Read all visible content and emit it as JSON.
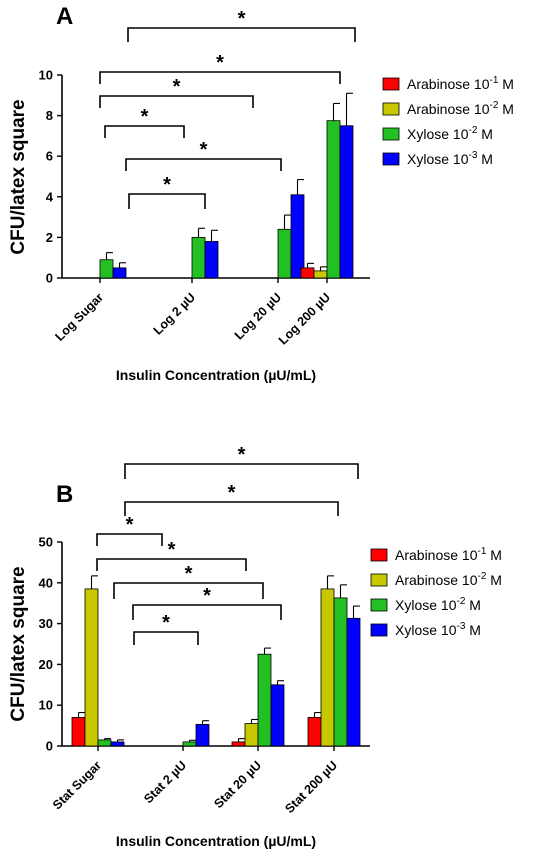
{
  "chart_data": [
    {
      "type": "bar",
      "panel": "A",
      "xlabel": "Insulin Concentration (µU/mL)",
      "ylabel": "CFU/latex square",
      "ylim": [
        0,
        10
      ],
      "yticks": [
        0,
        2,
        4,
        6,
        8,
        10
      ],
      "categories": [
        "Log Sugar",
        "Log 2 µU",
        "Log 20 µU",
        "Log 200 µU"
      ],
      "series": [
        {
          "name": "Arabinose 10^-1 M",
          "base": "Arabinose 10",
          "exp": "-1",
          "unit": " M",
          "color": "#ff0000",
          "values": [
            0,
            0,
            0,
            0.5
          ],
          "errors": [
            0,
            0,
            0,
            0.22
          ]
        },
        {
          "name": "Arabinose 10^-2 M",
          "base": "Arabinose 10",
          "exp": "-2",
          "unit": " M",
          "color": "#c8c800",
          "values": [
            0,
            0,
            0,
            0.35
          ],
          "errors": [
            0,
            0,
            0,
            0.2
          ]
        },
        {
          "name": "Xylose 10^-2 M",
          "base": "Xylose 10",
          "exp": "-2",
          "unit": " M",
          "color": "#22c022",
          "values": [
            0.9,
            2.0,
            2.4,
            7.75
          ],
          "errors": [
            0.35,
            0.45,
            0.7,
            0.85
          ]
        },
        {
          "name": "Xylose 10^-3 M",
          "base": "Xylose 10",
          "exp": "-3",
          "unit": " M",
          "color": "#0000ff",
          "values": [
            0.5,
            1.8,
            4.1,
            7.5
          ],
          "errors": [
            0.25,
            0.55,
            0.75,
            1.6
          ]
        }
      ],
      "significance": [
        {
          "from": "Log Sugar",
          "to": "Log 200 µU",
          "label": "*"
        },
        {
          "from": "Log Sugar",
          "to": "Log 200 µU",
          "label": "*"
        },
        {
          "from": "Log Sugar",
          "to": "Log 20 µU",
          "label": "*"
        },
        {
          "from": "Log Sugar",
          "to": "Log 2 µU",
          "label": "*"
        },
        {
          "from": "Log Sugar",
          "to": "Log 20 µU",
          "label": "*"
        },
        {
          "from": "Log Sugar",
          "to": "Log 2 µU",
          "label": "*"
        }
      ]
    },
    {
      "type": "bar",
      "panel": "B",
      "xlabel": "Insulin Concentration (µU/mL)",
      "ylabel": "CFU/latex square",
      "ylim": [
        0,
        50
      ],
      "yticks": [
        0,
        10,
        20,
        30,
        40,
        50
      ],
      "categories": [
        "Stat Sugar",
        "Stat 2 µU",
        "Stat 20 µU",
        "Stat 200 µU"
      ],
      "series": [
        {
          "name": "Arabinose 10^-1 M",
          "base": "Arabinose 10",
          "exp": "-1",
          "unit": " M",
          "color": "#ff0000",
          "values": [
            7.0,
            0,
            1.0,
            7.0
          ],
          "errors": [
            1.2,
            0,
            0.8,
            1.2
          ]
        },
        {
          "name": "Arabinose 10^-2 M",
          "base": "Arabinose 10",
          "exp": "-2",
          "unit": " M",
          "color": "#c8c800",
          "values": [
            38.5,
            0,
            5.5,
            38.5
          ],
          "errors": [
            3.2,
            0,
            1.0,
            3.2
          ]
        },
        {
          "name": "Xylose 10^-2 M",
          "base": "Xylose 10",
          "exp": "-2",
          "unit": " M",
          "color": "#22c022",
          "values": [
            1.5,
            1.0,
            22.5,
            36.3
          ],
          "errors": [
            0.3,
            0.4,
            1.5,
            3.2
          ]
        },
        {
          "name": "Xylose 10^-3 M",
          "base": "Xylose 10",
          "exp": "-3",
          "unit": " M",
          "color": "#0000ff",
          "values": [
            1.0,
            5.3,
            15.0,
            31.3
          ],
          "errors": [
            0.5,
            0.9,
            1.0,
            3.0
          ]
        }
      ],
      "significance": [
        {
          "from": "Stat Sugar",
          "to": "Stat 200 µU",
          "label": "*"
        },
        {
          "from": "Stat Sugar",
          "to": "Stat 200 µU",
          "label": "*"
        },
        {
          "from": "Stat Sugar",
          "to": "Stat 2 µU",
          "label": "*"
        },
        {
          "from": "Stat Sugar",
          "to": "Stat 20 µU",
          "label": "*"
        },
        {
          "from": "Stat Sugar",
          "to": "Stat 20 µU",
          "label": "*"
        },
        {
          "from": "Stat Sugar",
          "to": "Stat 20 µU",
          "label": "*"
        },
        {
          "from": "Stat Sugar",
          "to": "Stat 2 µU",
          "label": "*"
        }
      ]
    }
  ]
}
